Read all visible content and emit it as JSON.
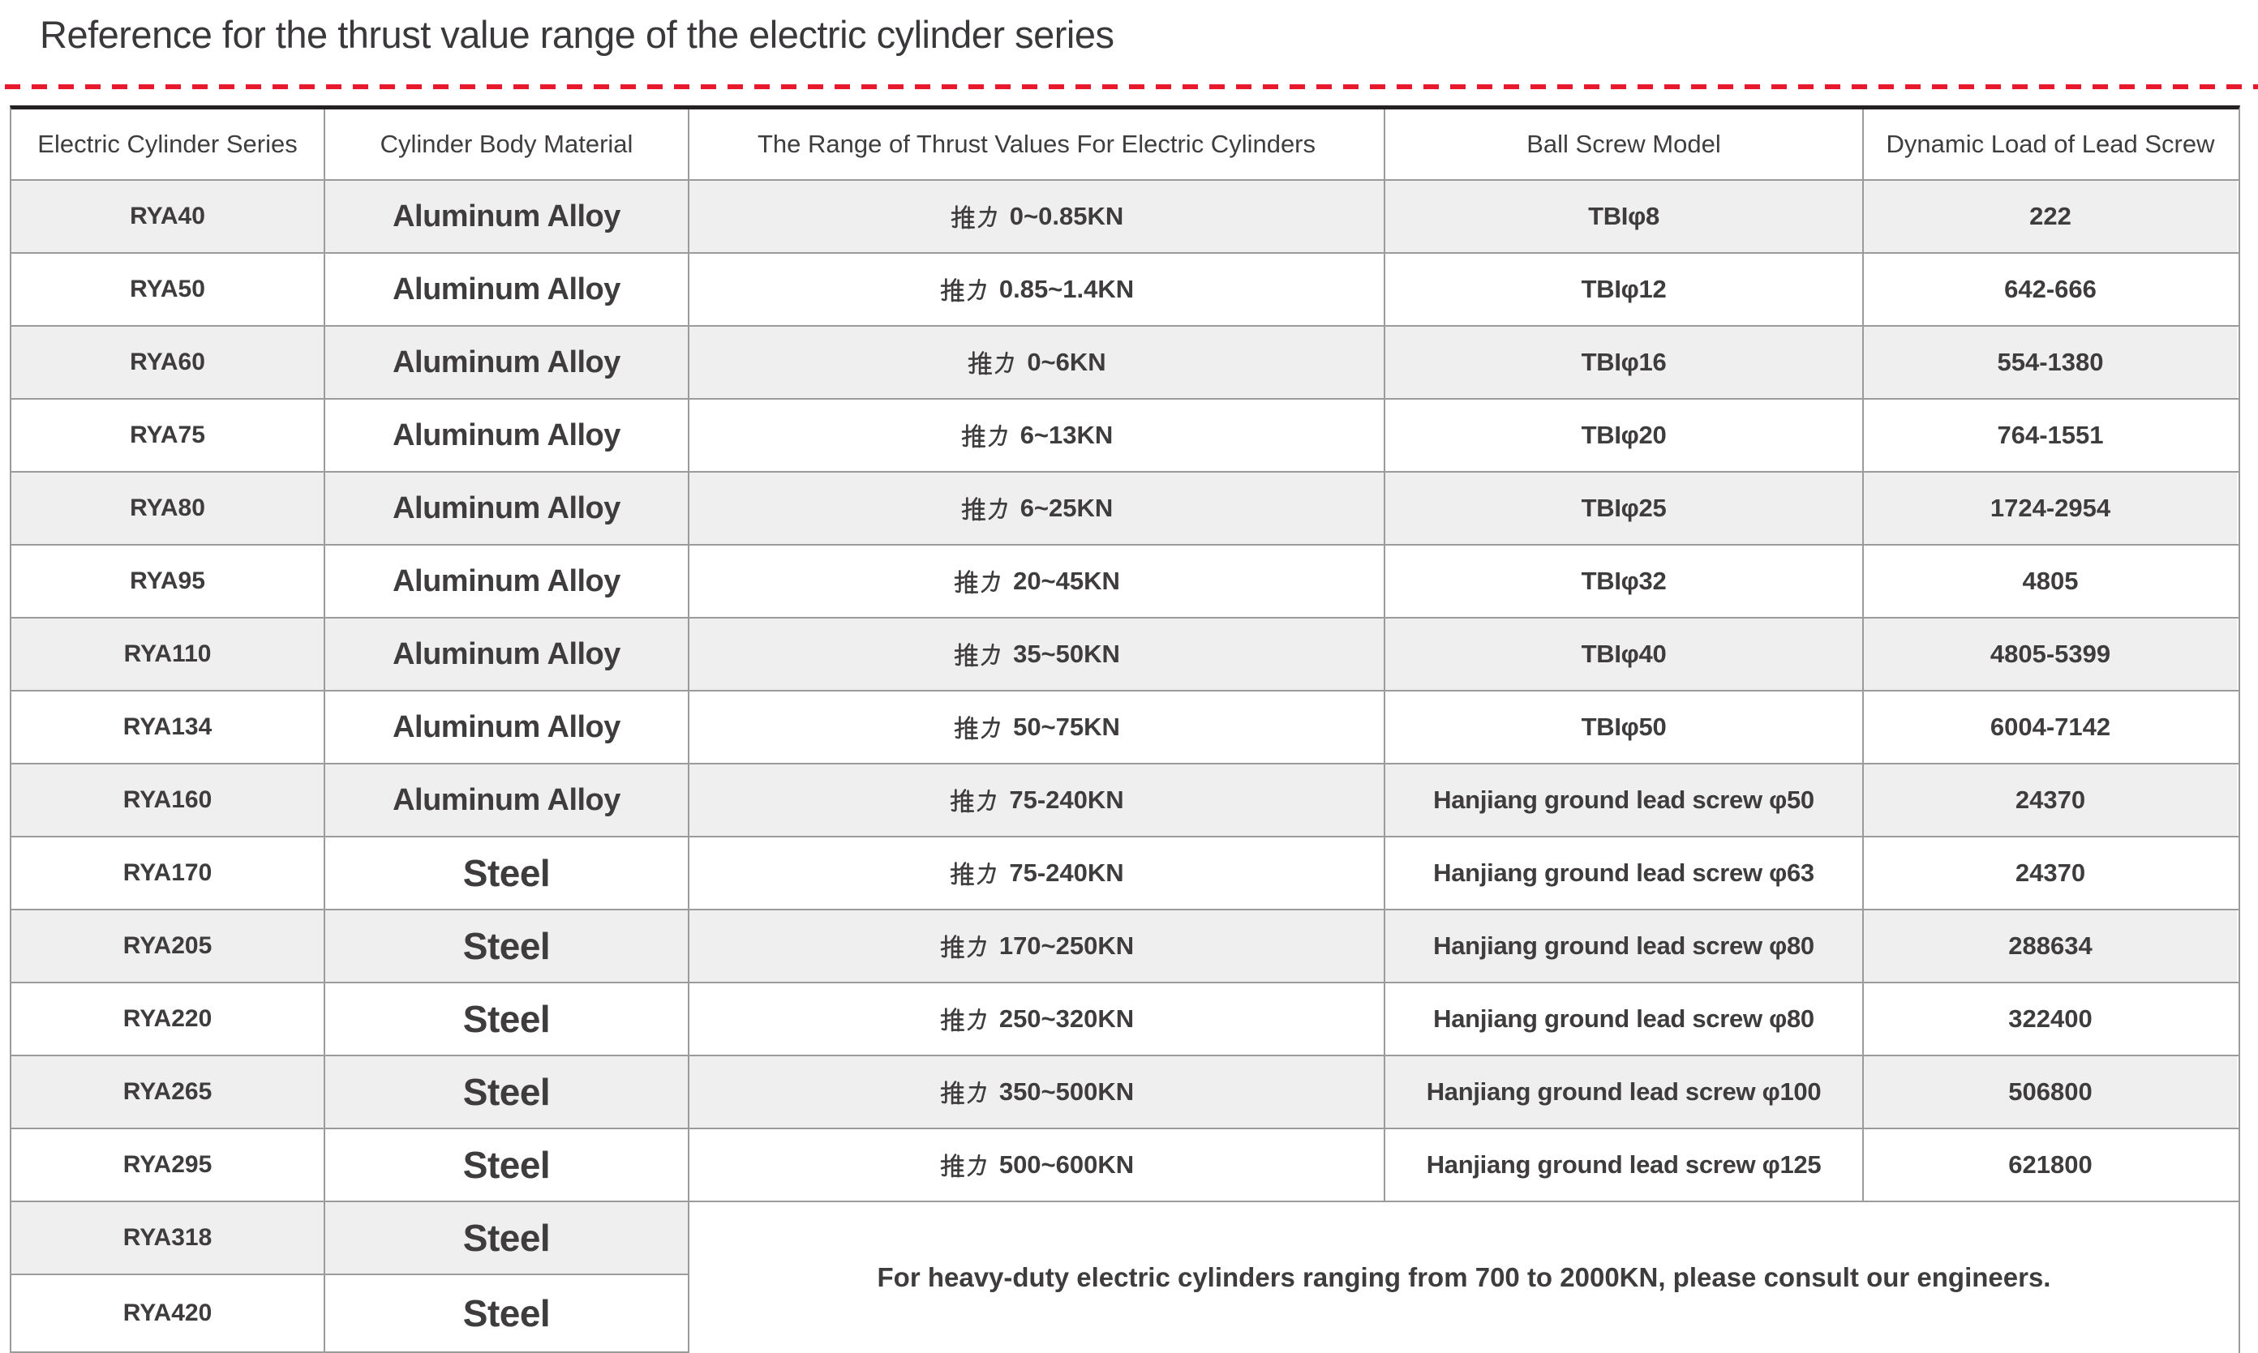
{
  "page": {
    "title": "Reference for the thrust value range of the electric cylinder series",
    "divider_color": "#e8182d",
    "zebra_row_bg": "#f0eff0",
    "border_color": "#9c9b9c",
    "text_color": "#3e3c3d"
  },
  "table": {
    "headers": [
      "Electric Cylinder Series",
      "Cylinder Body Material",
      "The Range of Thrust Values For Electric Cylinders",
      "Ball Screw Model",
      "Dynamic Load of Lead Screw"
    ],
    "thrust_label_cn": "推力",
    "rows": [
      {
        "series": "RYA40",
        "material": "Aluminum Alloy",
        "thrust_range": "0~0.85KN",
        "ball_screw": "TBIφ8",
        "dynamic_load": "222"
      },
      {
        "series": "RYA50",
        "material": "Aluminum Alloy",
        "thrust_range": "0.85~1.4KN",
        "ball_screw": "TBIφ12",
        "dynamic_load": "642-666"
      },
      {
        "series": "RYA60",
        "material": "Aluminum Alloy",
        "thrust_range": "0~6KN",
        "ball_screw": "TBIφ16",
        "dynamic_load": "554-1380"
      },
      {
        "series": "RYA75",
        "material": "Aluminum Alloy",
        "thrust_range": "6~13KN",
        "ball_screw": "TBIφ20",
        "dynamic_load": "764-1551"
      },
      {
        "series": "RYA80",
        "material": "Aluminum Alloy",
        "thrust_range": "6~25KN",
        "ball_screw": "TBIφ25",
        "dynamic_load": "1724-2954"
      },
      {
        "series": "RYA95",
        "material": "Aluminum Alloy",
        "thrust_range": "20~45KN",
        "ball_screw": "TBIφ32",
        "dynamic_load": "4805"
      },
      {
        "series": "RYA110",
        "material": "Aluminum Alloy",
        "thrust_range": "35~50KN",
        "ball_screw": "TBIφ40",
        "dynamic_load": "4805-5399"
      },
      {
        "series": "RYA134",
        "material": "Aluminum Alloy",
        "thrust_range": "50~75KN",
        "ball_screw": "TBIφ50",
        "dynamic_load": "6004-7142"
      },
      {
        "series": "RYA160",
        "material": "Aluminum Alloy",
        "thrust_range": "75-240KN",
        "ball_screw": "Hanjiang ground lead screw φ50",
        "dynamic_load": "24370"
      },
      {
        "series": "RYA170",
        "material": "Steel",
        "thrust_range": "75-240KN",
        "ball_screw": "Hanjiang ground lead screw φ63",
        "dynamic_load": "24370"
      },
      {
        "series": "RYA205",
        "material": "Steel",
        "thrust_range": "170~250KN",
        "ball_screw": "Hanjiang ground lead screw φ80",
        "dynamic_load": "288634"
      },
      {
        "series": "RYA220",
        "material": "Steel",
        "thrust_range": "250~320KN",
        "ball_screw": "Hanjiang ground lead screw φ80",
        "dynamic_load": "322400"
      },
      {
        "series": "RYA265",
        "material": "Steel",
        "thrust_range": "350~500KN",
        "ball_screw": "Hanjiang ground lead screw φ100",
        "dynamic_load": "506800"
      },
      {
        "series": "RYA295",
        "material": "Steel",
        "thrust_range": "500~600KN",
        "ball_screw": "Hanjiang ground lead screw φ125",
        "dynamic_load": "621800"
      },
      {
        "series": "RYA318",
        "material": "Steel"
      },
      {
        "series": "RYA420",
        "material": "Steel"
      }
    ],
    "merged_note": "For heavy-duty electric cylinders ranging from 700 to 2000KN, please consult our engineers."
  }
}
